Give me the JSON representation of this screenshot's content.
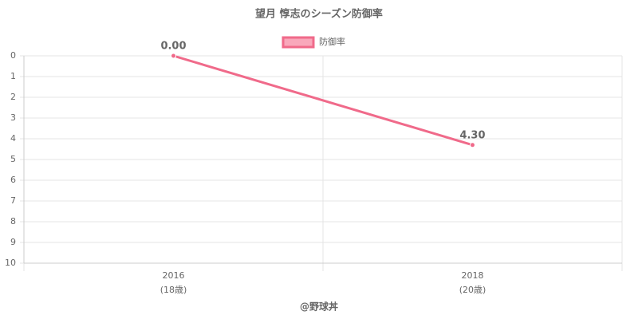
{
  "chart_data": {
    "type": "line",
    "title": "望月 惇志のシーズン防御率",
    "categories": [
      "2016",
      "2018"
    ],
    "category_sublabels": [
      "(18歳)",
      "(20歳)"
    ],
    "series": [
      {
        "name": "防御率",
        "color": "#f06a8a",
        "values": [
          0.0,
          4.3
        ],
        "value_labels": [
          "0.00",
          "4.30"
        ]
      }
    ],
    "ylim": [
      0,
      10
    ],
    "y_reversed": true,
    "yticks": [
      0,
      1,
      2,
      3,
      4,
      5,
      6,
      7,
      8,
      9,
      10
    ],
    "grid": true,
    "legend": "top",
    "footer": "@野球丼"
  }
}
